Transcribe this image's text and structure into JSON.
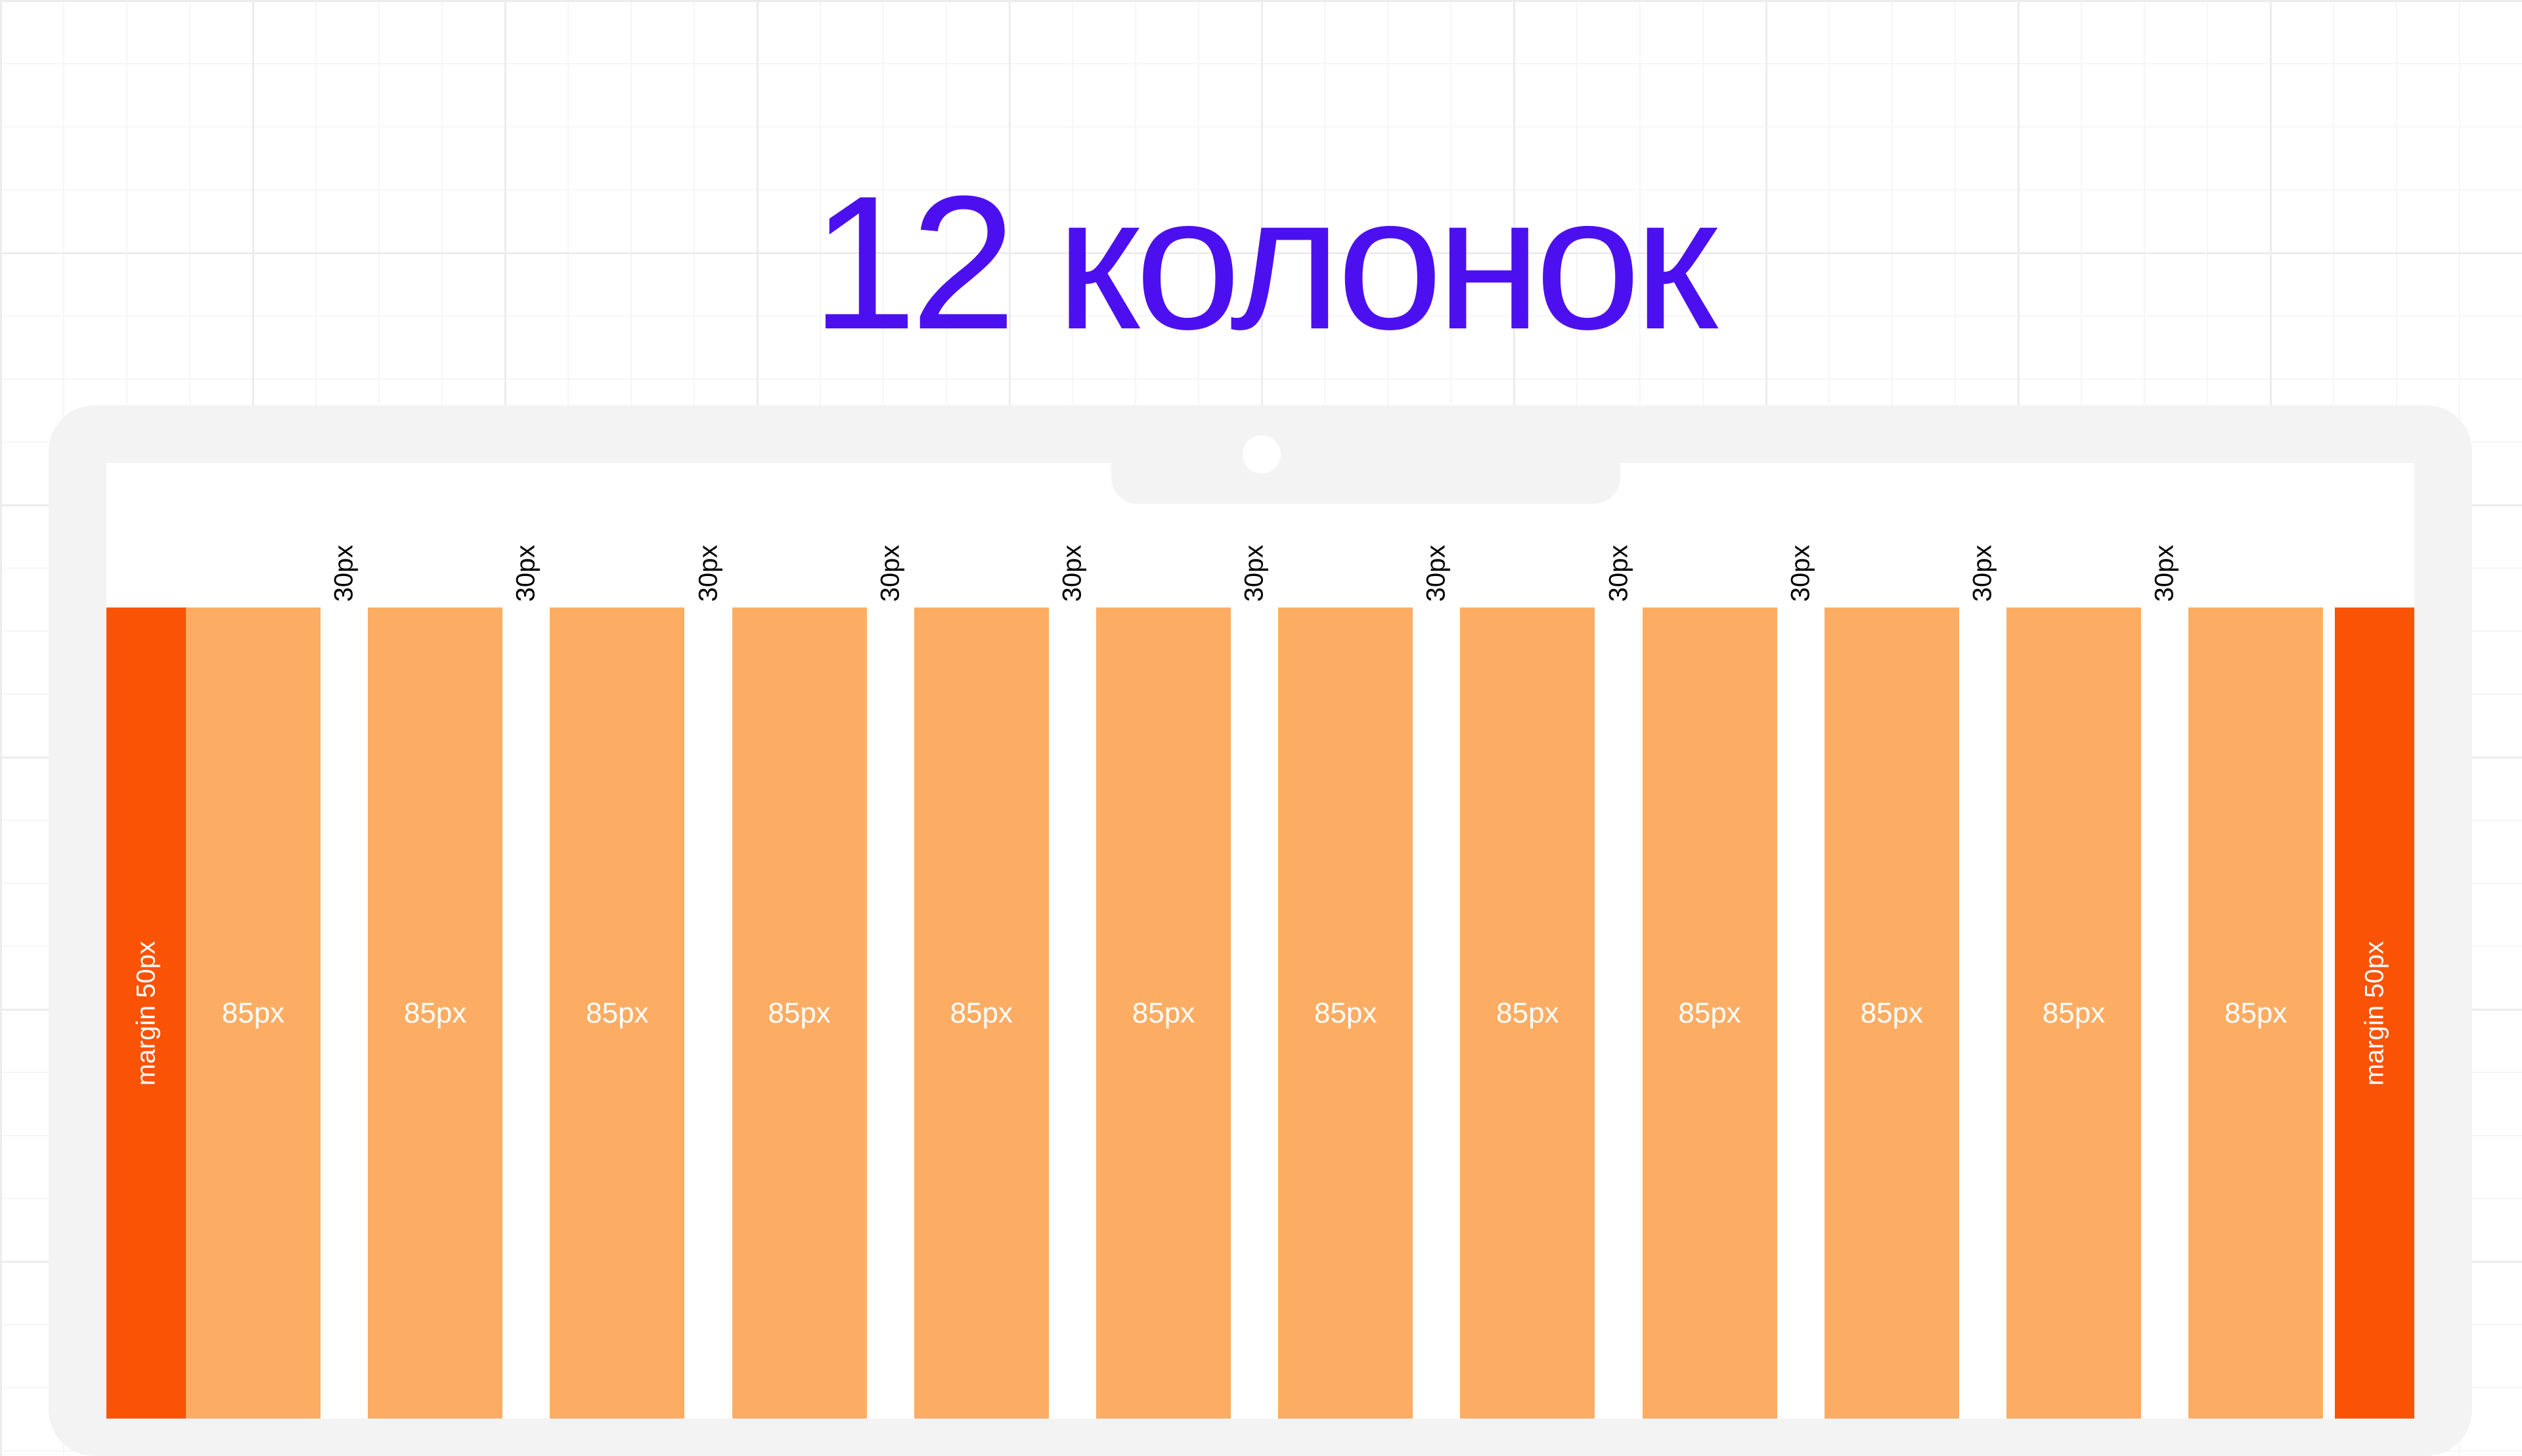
{
  "title": "12 колонок",
  "colors": {
    "title": "#4c10f0",
    "margin": "#fa5306",
    "column": "#fdad63",
    "frame": "#f3f3f3"
  },
  "margin_label": "margin 50px",
  "column_label": "85px",
  "gutter_label": "30px",
  "column_count": 12,
  "gutter_count": 11
}
